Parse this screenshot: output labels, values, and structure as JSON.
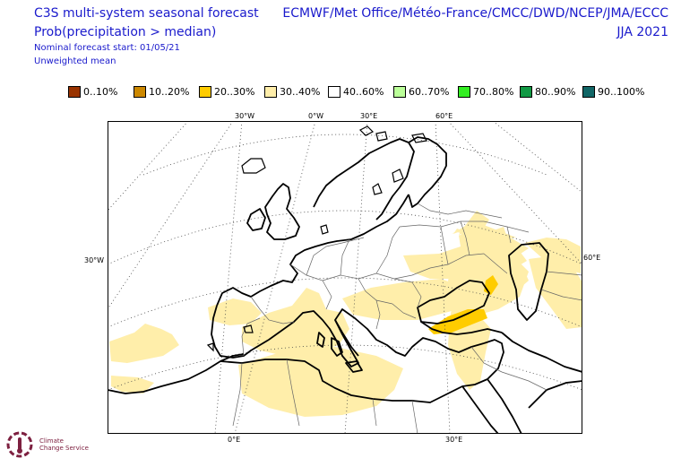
{
  "header": {
    "title_line1": "C3S multi-system seasonal forecast",
    "title_line2": "Prob(precipitation > median)",
    "nominal_start": "Nominal forecast start: 01/05/21",
    "mean_type": "Unweighted mean",
    "models": "ECMWF/Met Office/Météo-France/CMCC/DWD/NCEP/JMA/ECCC",
    "season": "JJA 2021"
  },
  "legend": [
    {
      "label": "0..10%",
      "color": "#993300"
    },
    {
      "label": "10..20%",
      "color": "#cc8800"
    },
    {
      "label": "20..30%",
      "color": "#ffcc00"
    },
    {
      "label": "30..40%",
      "color": "#ffeeaa"
    },
    {
      "label": "40..60%",
      "color": "#ffffff"
    },
    {
      "label": "60..70%",
      "color": "#bbff99"
    },
    {
      "label": "70..80%",
      "color": "#33ee22"
    },
    {
      "label": "80..90%",
      "color": "#119944"
    },
    {
      "label": "90..100%",
      "color": "#116666"
    }
  ],
  "axis_labels": {
    "top": [
      "30°W",
      "0°W",
      "30°E",
      "60°E"
    ],
    "left": "30°W",
    "right": "60°E",
    "bottom": [
      "0°E",
      "30°E"
    ]
  },
  "logo": {
    "line1": "Climate",
    "line2": "Change Service"
  }
}
